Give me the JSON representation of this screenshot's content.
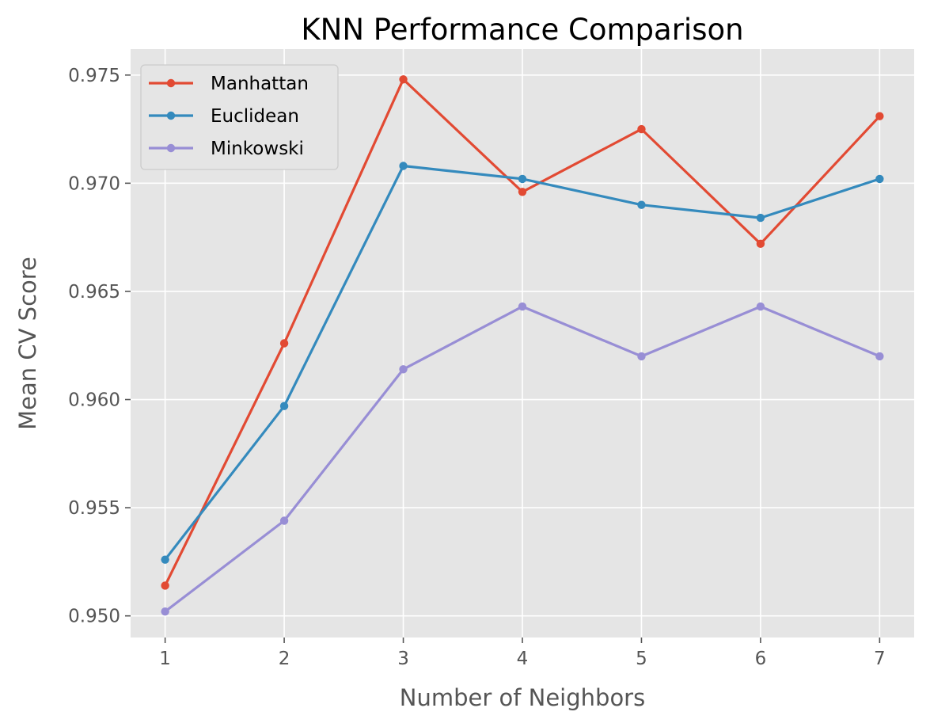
{
  "chart_data": {
    "type": "line",
    "title": "KNN Performance Comparison",
    "xlabel": "Number of Neighbors",
    "ylabel": "Mean CV Score",
    "x": [
      1,
      2,
      3,
      4,
      5,
      6,
      7
    ],
    "xticks": [
      "1",
      "2",
      "3",
      "4",
      "5",
      "6",
      "7"
    ],
    "xlim": [
      0.71,
      7.29
    ],
    "yticks": [
      "0.950",
      "0.955",
      "0.960",
      "0.965",
      "0.970",
      "0.975"
    ],
    "ylim": [
      0.949,
      0.9762
    ],
    "grid": true,
    "legend_position": "upper-left",
    "series": [
      {
        "name": "Manhattan",
        "color": "#E24A33",
        "values": [
          0.9514,
          0.9626,
          0.9748,
          0.9696,
          0.9725,
          0.9672,
          0.9731
        ]
      },
      {
        "name": "Euclidean",
        "color": "#348ABD",
        "values": [
          0.9526,
          0.9597,
          0.9708,
          0.9702,
          0.969,
          0.9684,
          0.9702
        ]
      },
      {
        "name": "Minkowski",
        "color": "#988ED5",
        "values": [
          0.9502,
          0.9544,
          0.9614,
          0.9643,
          0.962,
          0.9643,
          0.962
        ]
      }
    ]
  },
  "colors": {
    "plot_background": "#E5E5E5",
    "grid": "#FFFFFF",
    "text": "#555555"
  }
}
